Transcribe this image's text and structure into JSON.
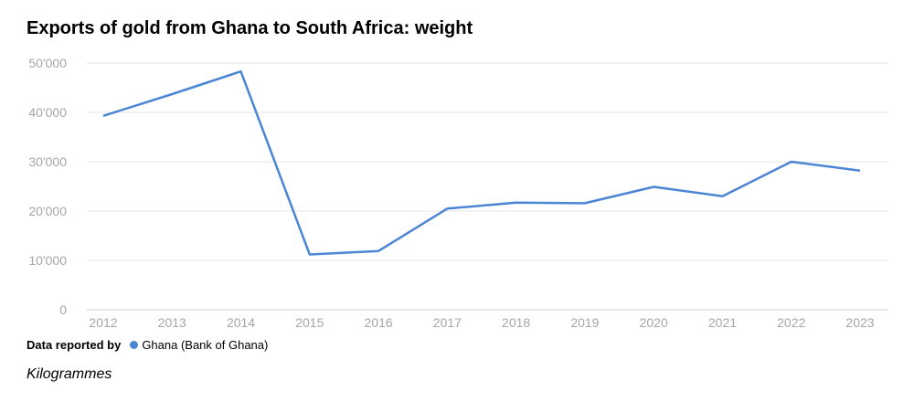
{
  "chart_data": {
    "type": "line",
    "title": "Exports of gold from Ghana to South Africa: weight",
    "categories": [
      "2012",
      "2013",
      "2014",
      "2015",
      "2016",
      "2017",
      "2018",
      "2019",
      "2020",
      "2021",
      "2022",
      "2023"
    ],
    "series": [
      {
        "name": "Ghana (Bank of Ghana)",
        "color": "#4a86d4",
        "values": [
          39300,
          43700,
          48300,
          11200,
          11900,
          20500,
          21700,
          21600,
          24900,
          23000,
          30000,
          28200
        ]
      }
    ],
    "ylim": [
      0,
      50000
    ],
    "yticks": [
      0,
      10000,
      20000,
      30000,
      40000,
      50000
    ],
    "ytick_labels": [
      "0",
      "10'000",
      "20'000",
      "30'000",
      "40'000",
      "50'000"
    ],
    "grid": true,
    "legend_prefix": "Data reported by",
    "legend_placement": "bottom-left",
    "unit": "Kilogrammes"
  }
}
